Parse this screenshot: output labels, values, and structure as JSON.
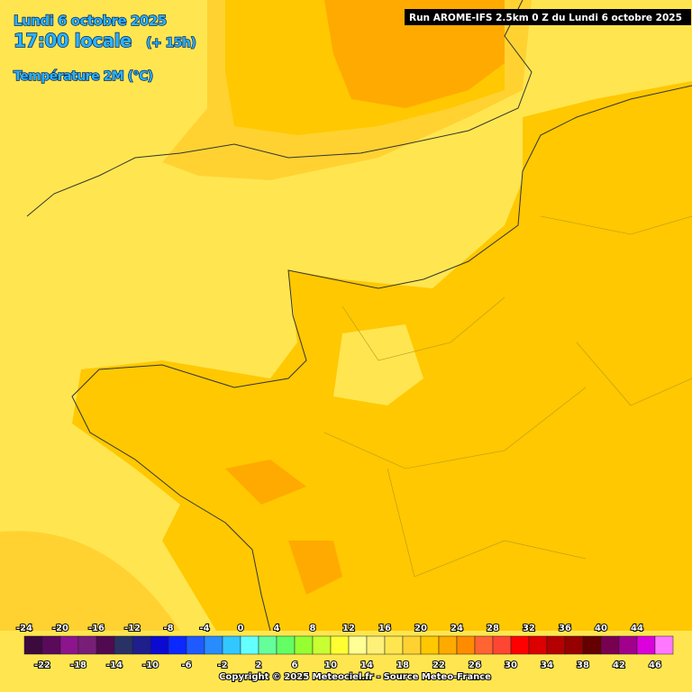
{
  "header": {
    "date": "Lundi 6 octobre 2025",
    "time": "17:00 locale",
    "offset": "(+ 15h)",
    "parameter": "Température 2M (°C)",
    "run": "Run AROME-IFS 2.5km 0 Z du Lundi 6 octobre 2025"
  },
  "legend": {
    "top_labels": [
      -24,
      -20,
      -16,
      -12,
      -8,
      -4,
      0,
      4,
      8,
      12,
      16,
      20,
      24,
      28,
      32,
      36,
      40,
      44
    ],
    "bottom_labels": [
      -22,
      -18,
      -14,
      -10,
      -6,
      -2,
      2,
      6,
      10,
      14,
      18,
      22,
      26,
      30,
      34,
      38,
      42,
      46
    ],
    "colors": [
      "#3c0a3c",
      "#5a0a5a",
      "#8c148c",
      "#781e78",
      "#500a50",
      "#283264",
      "#1e1e8c",
      "#0a0ad2",
      "#0a28ff",
      "#1e5aff",
      "#288cff",
      "#32c8ff",
      "#64ffff",
      "#64ff9b",
      "#64ff64",
      "#96ff32",
      "#c8ff32",
      "#ffff32",
      "#ffff96",
      "#fff078",
      "#ffe650",
      "#ffd232",
      "#ffc800",
      "#ffaa00",
      "#ff8c00",
      "#ff6432",
      "#ff4632",
      "#ff0000",
      "#dc0000",
      "#b40000",
      "#960000",
      "#640000",
      "#780050",
      "#a0008c",
      "#dc00dc",
      "#ff78ff"
    ]
  },
  "footer": {
    "copyright": "Copyright © 2025 Meteociel.fr - Source Meteo-France"
  }
}
